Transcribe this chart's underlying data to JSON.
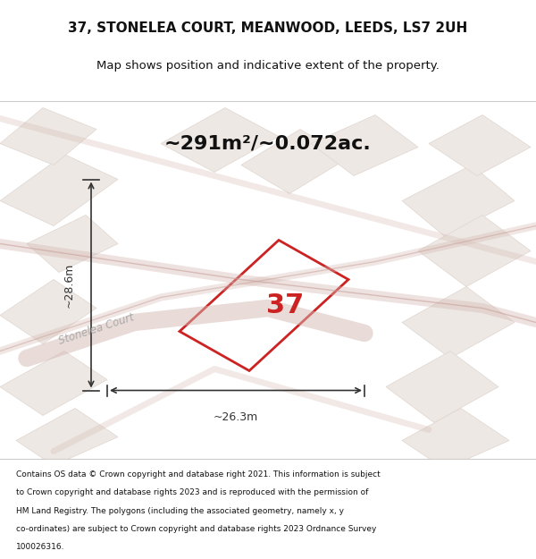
{
  "title_line1": "37, STONELEA COURT, MEANWOOD, LEEDS, LS7 2UH",
  "title_line2": "Map shows position and indicative extent of the property.",
  "area_text": "~291m²/~0.072ac.",
  "property_number": "37",
  "dim_width": "~26.3m",
  "dim_height": "~28.6m",
  "street_label": "Stonelea Court",
  "footer_lines": [
    "Contains OS data © Crown copyright and database right 2021. This information is subject",
    "to Crown copyright and database rights 2023 and is reproduced with the permission of",
    "HM Land Registry. The polygons (including the associated geometry, namely x, y",
    "co-ordinates) are subject to Crown copyright and database rights 2023 Ordnance Survey",
    "100026316."
  ],
  "map_bg_color": "#f2eeea",
  "bg_building": "#ede8e4",
  "bg_road": "#e0d5cf",
  "road_color": "#d4b8b2",
  "road_outline": "#c9a09a",
  "highlight_color": "#cc2222",
  "dim_color": "#333333",
  "street_label_color": "#aaaaaa",
  "separator_color": "#cccccc"
}
